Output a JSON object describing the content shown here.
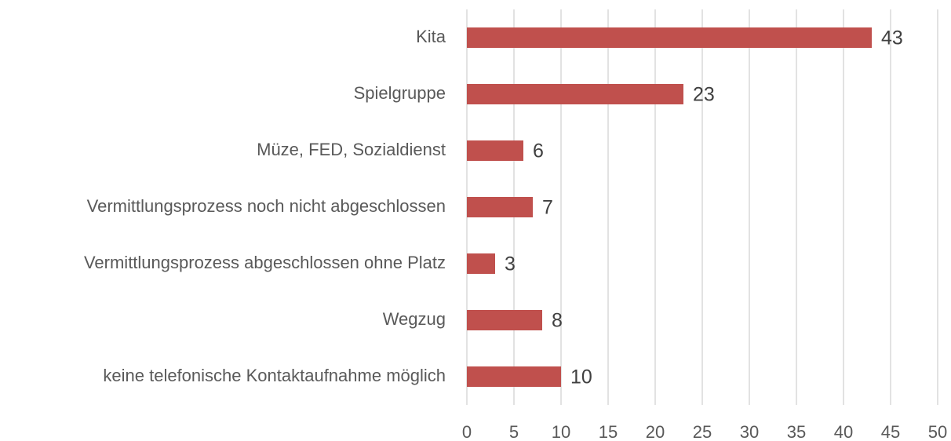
{
  "chart_data": {
    "type": "hbar",
    "categories": [
      "Kita",
      "Spielgruppe",
      "Müze, FED, Sozialdienst",
      "Vermittlungsprozess noch nicht abgeschlossen",
      "Vermittlungsprozess abgeschlossen ohne Platz",
      "Wegzug",
      "keine telefonische Kontaktaufnahme möglich"
    ],
    "values": [
      43,
      23,
      6,
      7,
      3,
      8,
      10
    ],
    "color": "#c0504d",
    "xlim": [
      0,
      50
    ],
    "xticks": [
      0,
      5,
      10,
      15,
      20,
      25,
      30,
      35,
      40,
      45,
      50
    ],
    "grid": true
  }
}
